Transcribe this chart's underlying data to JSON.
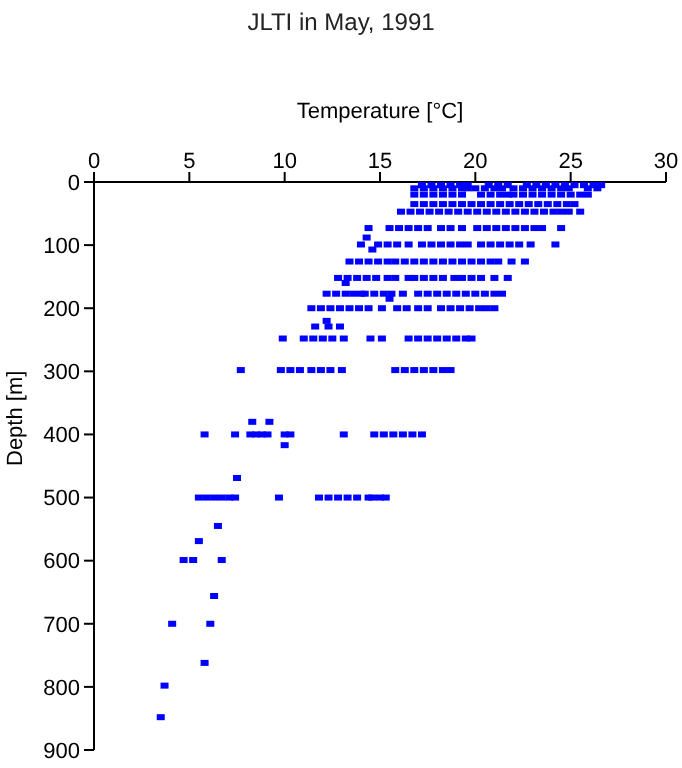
{
  "chart_data": {
    "type": "scatter",
    "title": "JLTI in May, 1991",
    "xlabel": "Temperature [°C]",
    "ylabel": "Depth [m]",
    "xlim": [
      0,
      30
    ],
    "xticks": [
      0,
      5,
      10,
      15,
      20,
      25,
      30
    ],
    "ylim": [
      900,
      0
    ],
    "yticks": [
      0,
      100,
      200,
      300,
      400,
      500,
      600,
      700,
      800,
      900
    ],
    "grid": false,
    "legend": false,
    "marker": "square",
    "series": [
      {
        "color": "#0000ff",
        "x": [
          17.2,
          17.7,
          18.2,
          18.7,
          19.2,
          19.6,
          20.7,
          21.2,
          21.7,
          22.7,
          23.2,
          23.7,
          24.2,
          24.7,
          25.2,
          25.7,
          26.2,
          26.6,
          16.8,
          17.3,
          17.8,
          18.3,
          18.8,
          19.3,
          19.6,
          20,
          20.5,
          21,
          21.4,
          22,
          22.5,
          23,
          23.5,
          24,
          24.5,
          24.9,
          25.9,
          26.4,
          16.8,
          17.3,
          17.8,
          18.3,
          18.8,
          19.3,
          20.3,
          20.8,
          21.3,
          21.7,
          22,
          22.5,
          23,
          23.5,
          24,
          24.5,
          25,
          25.5,
          25.9,
          16.8,
          17.3,
          17.8,
          18.3,
          18.8,
          19.3,
          19.8,
          20.3,
          20.8,
          21.3,
          21.8,
          22.3,
          22.8,
          23.3,
          23.8,
          24.3,
          24.8,
          25.2,
          16.1,
          16.6,
          17.1,
          17.6,
          18.1,
          18.6,
          19.1,
          19.6,
          20.1,
          20.6,
          21.1,
          21.6,
          22.1,
          22.6,
          23.1,
          23.6,
          24.1,
          24.5,
          24.9,
          25.5,
          14.4,
          15.5,
          16,
          16.5,
          17,
          17.5,
          18.2,
          18.7,
          19.3,
          20.1,
          20.6,
          21.1,
          21.6,
          22.1,
          22.6,
          23.1,
          23.5,
          24.5,
          14.3,
          14,
          14.9,
          15.4,
          15.9,
          16.5,
          17.2,
          17.7,
          18.2,
          18.7,
          19.2,
          19.6,
          20.3,
          20.8,
          21.3,
          21.8,
          22.3,
          22.9,
          24.2,
          14.6,
          13.4,
          13.9,
          14.4,
          14.9,
          15.4,
          15.8,
          16.3,
          16.8,
          17.3,
          17.8,
          18.3,
          18.8,
          19.3,
          19.8,
          20.3,
          20.8,
          21.2,
          21.9,
          22.6,
          12.8,
          13.3,
          13.8,
          14.3,
          14.8,
          15.4,
          15.8,
          16.5,
          16.8,
          17.3,
          17.8,
          18.3,
          18.9,
          19.3,
          19.8,
          20.3,
          21,
          21.7,
          13.2,
          12.2,
          12.7,
          13.2,
          13.6,
          14,
          14.2,
          14.7,
          15.2,
          15.6,
          16.2,
          17,
          17.5,
          18,
          18.5,
          19,
          19.5,
          20,
          20.5,
          21,
          21.4,
          15.5,
          11.4,
          11.9,
          12.4,
          12.9,
          13.4,
          13.9,
          14.4,
          15.1,
          15.9,
          16.4,
          17,
          17.5,
          18.2,
          18.7,
          19.2,
          19.7,
          20.2,
          20.6,
          21,
          12.2,
          11.6,
          12.3,
          12.9,
          9.9,
          11,
          11.5,
          12,
          12.5,
          13.1,
          14.5,
          15.1,
          16.5,
          17,
          17.5,
          18,
          18.5,
          19,
          19.5,
          19.8,
          7.7,
          9.8,
          10.3,
          10.8,
          11.4,
          11.9,
          12.4,
          13,
          15.8,
          16.3,
          16.8,
          17.3,
          17.8,
          18.3,
          18.7,
          8.3,
          9.2,
          5.8,
          7.4,
          8.2,
          8.5,
          8.8,
          9.1,
          10,
          10.3,
          13.1,
          14.7,
          15.2,
          15.7,
          16.2,
          16.7,
          17.2,
          10,
          7.5,
          5.5,
          5.9,
          6.3,
          6.7,
          7.1,
          7.4,
          9.7,
          11.8,
          12.3,
          12.8,
          13.3,
          13.8,
          14.4,
          14.6,
          15,
          15.3,
          6.5,
          5.5,
          4.7,
          5.2,
          6.7,
          6.3,
          4.1,
          6.1,
          5.8,
          3.7,
          3.5
        ],
        "values": [
          5,
          5,
          5,
          5,
          5,
          5,
          5,
          5,
          5,
          5,
          5,
          5,
          5,
          5,
          5,
          5,
          5,
          5,
          10,
          10,
          10,
          10,
          10,
          10,
          10,
          10,
          10,
          10,
          10,
          10,
          10,
          10,
          10,
          10,
          10,
          10,
          10,
          10,
          20,
          20,
          20,
          20,
          20,
          20,
          20,
          20,
          20,
          20,
          20,
          20,
          20,
          20,
          20,
          20,
          20,
          20,
          20,
          35,
          35,
          35,
          35,
          35,
          35,
          35,
          35,
          35,
          35,
          35,
          35,
          35,
          35,
          35,
          35,
          35,
          35,
          47,
          47,
          47,
          47,
          47,
          47,
          47,
          47,
          47,
          47,
          47,
          47,
          47,
          47,
          47,
          47,
          47,
          47,
          47,
          47,
          73,
          73,
          73,
          73,
          73,
          73,
          73,
          73,
          73,
          73,
          73,
          73,
          73,
          73,
          73,
          73,
          73,
          73,
          88,
          99,
          99,
          99,
          99,
          99,
          99,
          99,
          99,
          99,
          99,
          99,
          99,
          99,
          99,
          99,
          99,
          99,
          99,
          107,
          126,
          126,
          126,
          126,
          126,
          126,
          126,
          126,
          126,
          126,
          126,
          126,
          126,
          126,
          126,
          126,
          126,
          126,
          126,
          152,
          152,
          152,
          152,
          152,
          152,
          152,
          152,
          152,
          152,
          152,
          152,
          152,
          152,
          152,
          152,
          152,
          152,
          160,
          177,
          177,
          177,
          177,
          177,
          177,
          177,
          177,
          177,
          177,
          177,
          177,
          177,
          177,
          177,
          177,
          177,
          177,
          177,
          177,
          185,
          200,
          200,
          200,
          200,
          200,
          200,
          200,
          200,
          200,
          200,
          200,
          200,
          200,
          200,
          200,
          200,
          200,
          200,
          200,
          220,
          229,
          229,
          229,
          248,
          248,
          248,
          248,
          248,
          248,
          248,
          248,
          248,
          248,
          248,
          248,
          248,
          248,
          248,
          248,
          298,
          298,
          298,
          298,
          298,
          298,
          298,
          298,
          298,
          298,
          298,
          298,
          298,
          298,
          298,
          380,
          380,
          400,
          400,
          400,
          400,
          400,
          400,
          400,
          400,
          400,
          400,
          400,
          400,
          400,
          400,
          400,
          417,
          469,
          500,
          500,
          500,
          500,
          500,
          500,
          500,
          500,
          500,
          500,
          500,
          500,
          500,
          500,
          500,
          500,
          545,
          569,
          599,
          599,
          599,
          656,
          700,
          700,
          762,
          798,
          848
        ]
      }
    ]
  }
}
